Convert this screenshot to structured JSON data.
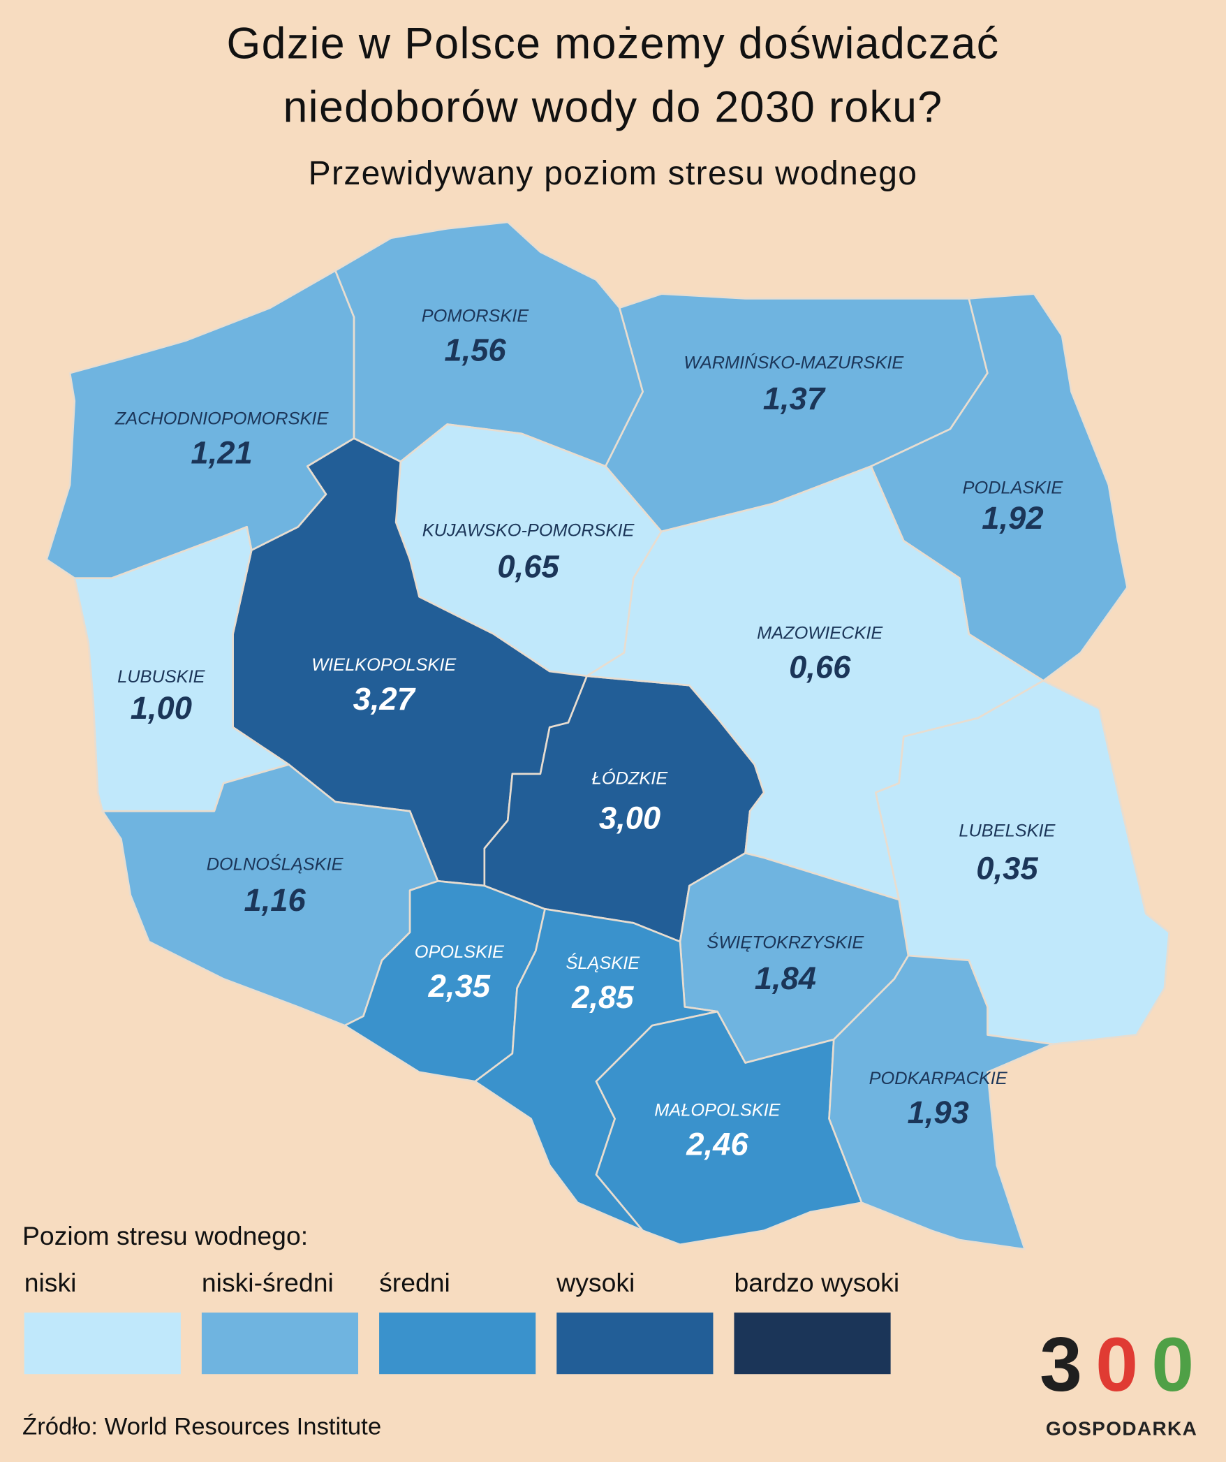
{
  "header": {
    "title_lines": [
      "Gdzie w Polsce możemy doświadczać",
      "niedoborów wody do 2030 roku?"
    ],
    "subtitle": "Przewidywany poziom stresu wodnego"
  },
  "regions": [
    {
      "name": "ZACHODNIOPOMORSKIE",
      "value": "1,21",
      "color": "#6fb4e0",
      "text_color": "#1b3558"
    },
    {
      "name": "POMORSKIE",
      "value": "1,56",
      "color": "#6fb4e0",
      "text_color": "#1b3558"
    },
    {
      "name": "WARMIŃSKO-MAZURSKIE",
      "value": "1,37",
      "color": "#6fb4e0",
      "text_color": "#1b3558"
    },
    {
      "name": "PODLASKIE",
      "value": "1,92",
      "color": "#6fb4e0",
      "text_color": "#1b3558"
    },
    {
      "name": "KUJAWSKO-POMORSKIE",
      "value": "0,65",
      "color": "#c0e8fb",
      "text_color": "#1b3558"
    },
    {
      "name": "WIELKOPOLSKIE",
      "value": "3,27",
      "color": "#225e97",
      "text_color": "#ffffff"
    },
    {
      "name": "LUBUSKIE",
      "value": "1,00",
      "color": "#c0e8fb",
      "text_color": "#1b3558"
    },
    {
      "name": "DOLNOŚLĄSKIE",
      "value": "1,16",
      "color": "#6fb4e0",
      "text_color": "#1b3558"
    },
    {
      "name": "OPOLSKIE",
      "value": "2,35",
      "color": "#3a92cc",
      "text_color": "#ffffff"
    },
    {
      "name": "ŁÓDZKIE",
      "value": "3,00",
      "color": "#225e97",
      "text_color": "#ffffff"
    },
    {
      "name": "MAZOWIECKIE",
      "value": "0,66",
      "color": "#c0e8fb",
      "text_color": "#1b3558"
    },
    {
      "name": "LUBELSKIE",
      "value": "0,35",
      "color": "#c0e8fb",
      "text_color": "#1b3558"
    },
    {
      "name": "ŚWIĘTOKRZYSKIE",
      "value": "1,84",
      "color": "#6fb4e0",
      "text_color": "#1b3558"
    },
    {
      "name": "ŚLĄSKIE",
      "value": "2,85",
      "color": "#3a92cc",
      "text_color": "#ffffff"
    },
    {
      "name": "MAŁOPOLSKIE",
      "value": "2,46",
      "color": "#3a92cc",
      "text_color": "#ffffff"
    },
    {
      "name": "PODKARPACKIE",
      "value": "1,93",
      "color": "#6fb4e0",
      "text_color": "#1b3558"
    }
  ],
  "legend": {
    "title": "Poziom stresu wodnego:",
    "items": [
      {
        "label": "niski",
        "color": "#c0e8fb"
      },
      {
        "label": "niski-średni",
        "color": "#6fb4e0"
      },
      {
        "label": "średni",
        "color": "#3a92cc"
      },
      {
        "label": "wysoki",
        "color": "#225e97"
      },
      {
        "label": "bardzo wysoki",
        "color": "#1b3558"
      }
    ]
  },
  "source": "Źródło: World Resources Institute",
  "logo": {
    "digits": [
      "3",
      "0",
      "0"
    ],
    "digit_colors": [
      "#1f1f1f",
      "#e03b33",
      "#4fa046"
    ],
    "name": "GOSPODARKA"
  }
}
